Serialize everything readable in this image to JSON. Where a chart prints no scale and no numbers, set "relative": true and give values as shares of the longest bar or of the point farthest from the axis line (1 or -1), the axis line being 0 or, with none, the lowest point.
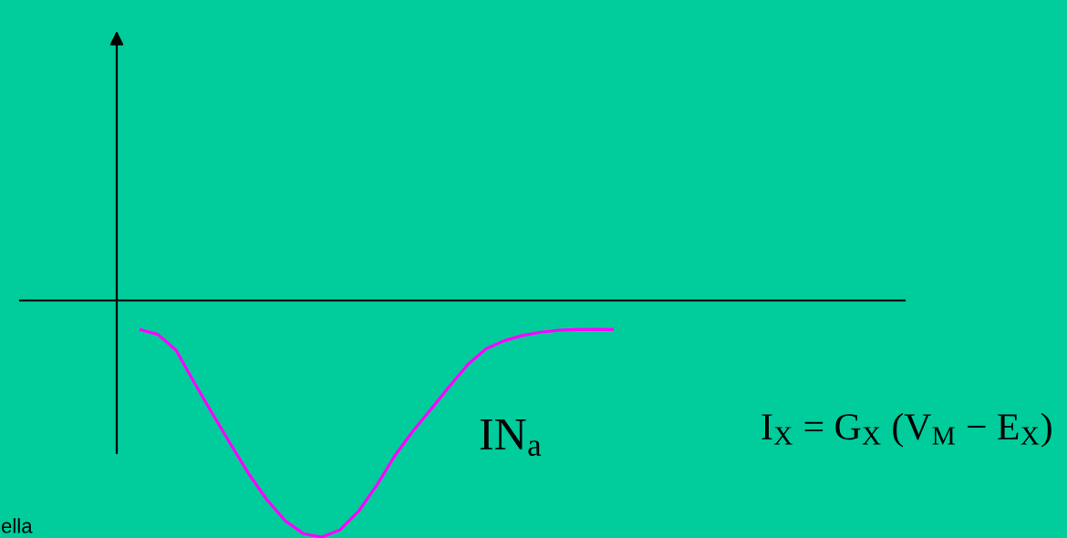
{
  "chart_data": {
    "type": "line",
    "relative": true,
    "marker": "none",
    "line_style": "solid",
    "categories": [
      null,
      null,
      null,
      null,
      null,
      null,
      null,
      null,
      null,
      null,
      null,
      null,
      null,
      null,
      null,
      null,
      null,
      null,
      null,
      null,
      null,
      null,
      null,
      null,
      null,
      null,
      null
    ],
    "series": [
      {
        "name": "IN$_{a}$",
        "color": "#ff00ff",
        "values": [
          -0.123,
          -0.143,
          -0.21,
          -0.347,
          -0.479,
          -0.608,
          -0.734,
          -0.844,
          -0.932,
          -0.986,
          -1.0,
          -0.969,
          -0.892,
          -0.782,
          -0.656,
          -0.551,
          -0.458,
          -0.362,
          -0.271,
          -0.204,
          -0.17,
          -0.148,
          -0.134,
          -0.126,
          -0.123,
          -0.122,
          -0.123
        ]
      }
    ],
    "annotations": [
      "I$_{X}$ = G$_{X}$ (V$_{M}$ − E$_{X}$)",
      "ella"
    ]
  }
}
